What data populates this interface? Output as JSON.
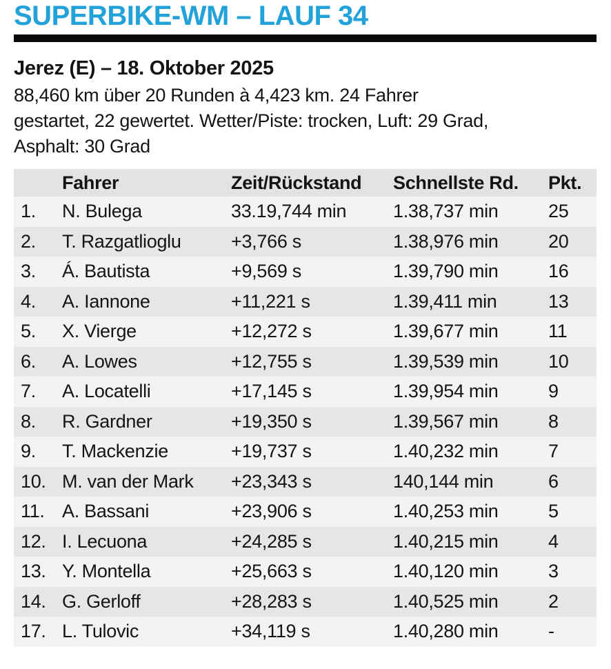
{
  "theme": {
    "accent_color": "#23A2D9",
    "rule_color": "#0A0A0A",
    "row_light": "#F3F3F3",
    "row_dark": "#E6E6E6",
    "header_bg": "#E3E3E3"
  },
  "header": {
    "title": "SUPERBIKE-WM – LAUF 34"
  },
  "event": {
    "heading": "Jerez (E) – 18. Oktober 2025",
    "description_lines": [
      "88,460 km über 20 Runden à 4,423 km. 24 Fahrer",
      "gestartet, 22 gewertet. Wetter/Piste: trocken, Luft: 29 Grad,",
      "Asphalt: 30 Grad"
    ]
  },
  "results_table": {
    "columns": [
      "Fahrer",
      "Zeit/Rückstand",
      "Schnellste Rd.",
      "Pkt."
    ],
    "rows": [
      {
        "rank": "1.",
        "fahrer": "N. Bulega",
        "zeit": "33.19,744 min",
        "schnellste": "1.38,737 min",
        "pkt": "25"
      },
      {
        "rank": "2.",
        "fahrer": "T. Razgatlioglu",
        "zeit": "+3,766 s",
        "schnellste": "1.38,976 min",
        "pkt": "20"
      },
      {
        "rank": "3.",
        "fahrer": "Á. Bautista",
        "zeit": "+9,569 s",
        "schnellste": "1.39,790 min",
        "pkt": "16"
      },
      {
        "rank": "4.",
        "fahrer": "A. Iannone",
        "zeit": "+11,221 s",
        "schnellste": "1.39,411 min",
        "pkt": "13"
      },
      {
        "rank": "5.",
        "fahrer": "X. Vierge",
        "zeit": "+12,272 s",
        "schnellste": "1.39,677 min",
        "pkt": "11"
      },
      {
        "rank": "6.",
        "fahrer": "A. Lowes",
        "zeit": "+12,755 s",
        "schnellste": "1.39,539 min",
        "pkt": "10"
      },
      {
        "rank": "7.",
        "fahrer": "A. Locatelli",
        "zeit": "+17,145 s",
        "schnellste": "1.39,954 min",
        "pkt": "9"
      },
      {
        "rank": "8.",
        "fahrer": "R. Gardner",
        "zeit": "+19,350 s",
        "schnellste": "1.39,567 min",
        "pkt": "8"
      },
      {
        "rank": "9.",
        "fahrer": "T. Mackenzie",
        "zeit": "+19,737 s",
        "schnellste": "1.40,232 min",
        "pkt": "7"
      },
      {
        "rank": "10.",
        "fahrer": "M. van der Mark",
        "zeit": "+23,343 s",
        "schnellste": "140,144 min",
        "pkt": "6"
      },
      {
        "rank": "11.",
        "fahrer": "A. Bassani",
        "zeit": "+23,906 s",
        "schnellste": "1.40,253 min",
        "pkt": "5"
      },
      {
        "rank": "12.",
        "fahrer": "I. Lecuona",
        "zeit": "+24,285 s",
        "schnellste": "1.40,215 min",
        "pkt": "4"
      },
      {
        "rank": "13.",
        "fahrer": "Y. Montella",
        "zeit": "+25,663 s",
        "schnellste": "1.40,120 min",
        "pkt": "3"
      },
      {
        "rank": "14.",
        "fahrer": "G. Gerloff",
        "zeit": "+28,283 s",
        "schnellste": "1.40,525 min",
        "pkt": "2"
      },
      {
        "rank": "17.",
        "fahrer": "L. Tulovic",
        "zeit": "+34,119 s",
        "schnellste": "1.40,280 min",
        "pkt": "-"
      }
    ]
  }
}
